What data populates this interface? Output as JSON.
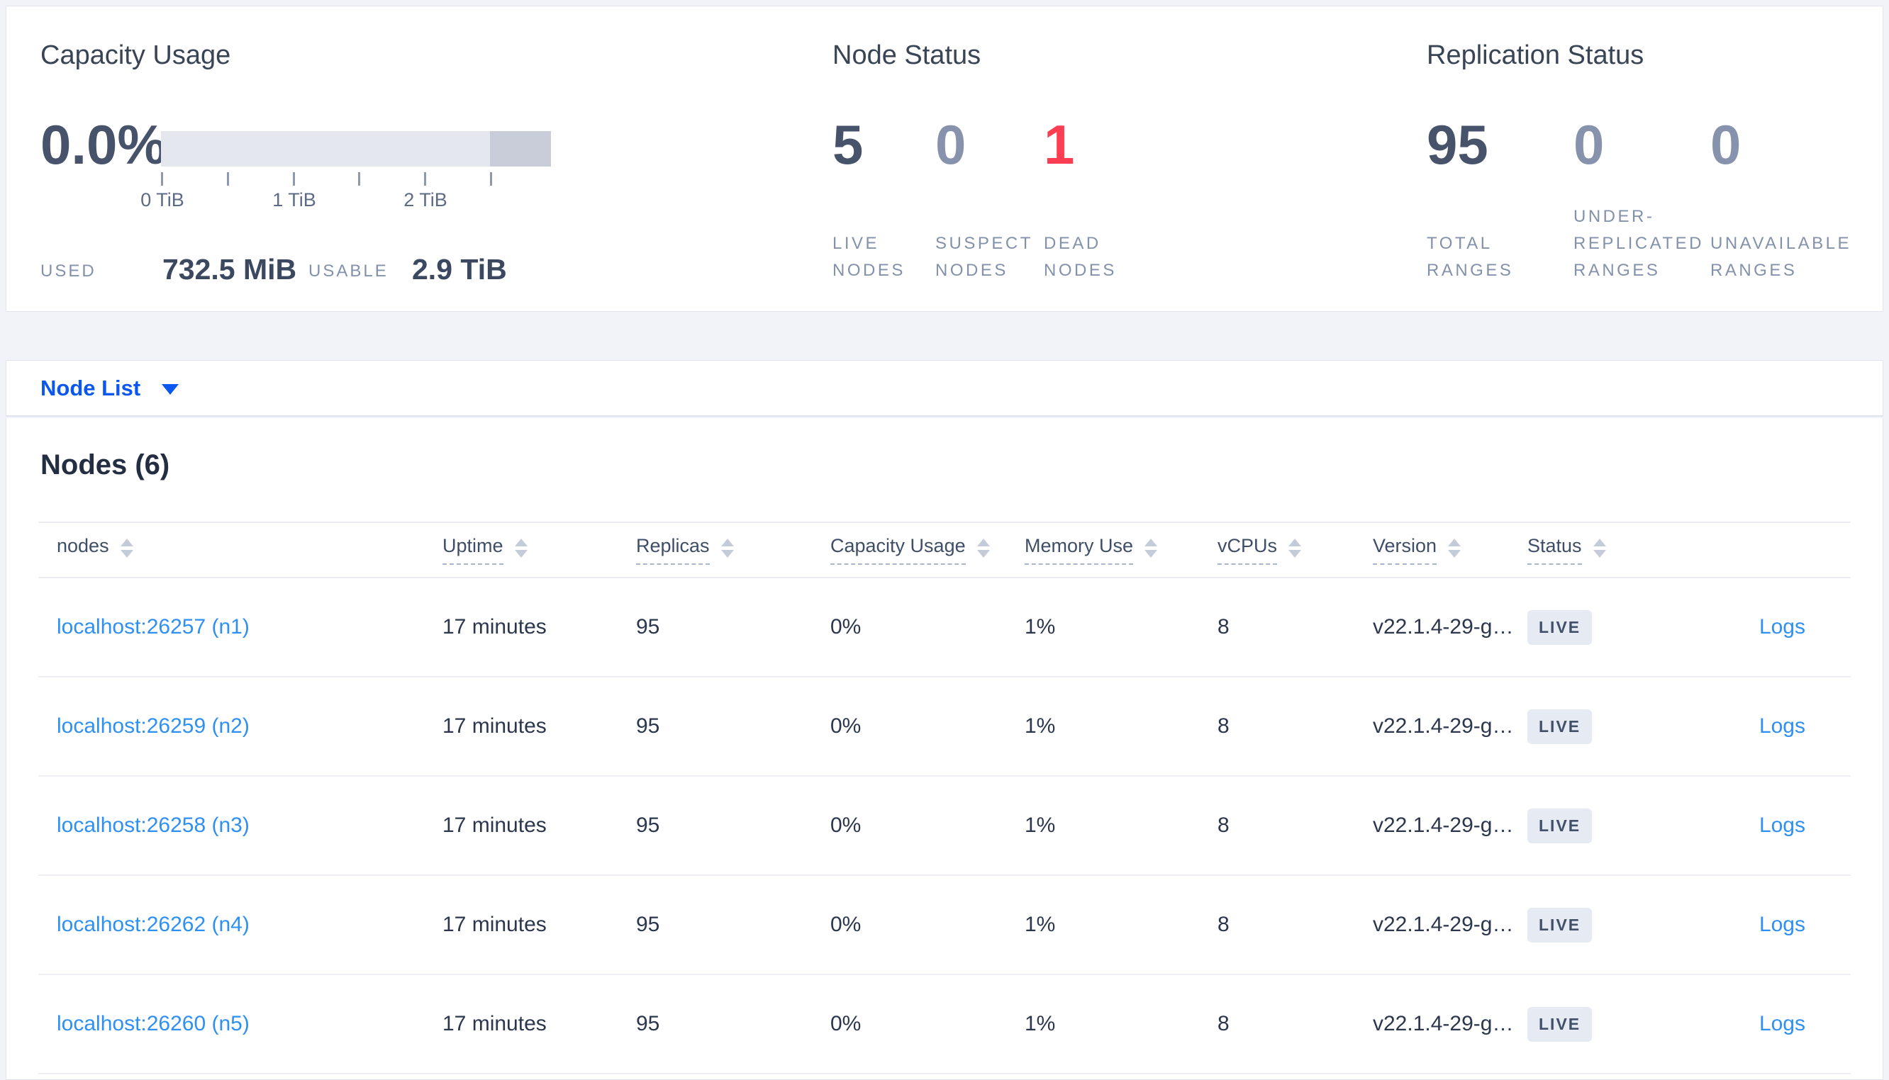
{
  "colors": {
    "page_background": "#f1f3f8",
    "card_background": "#ffffff",
    "primary_blue": "#0b57f0",
    "link_blue": "#2e90f2",
    "dark_slate": "#46536b",
    "muted_slate": "#8792ac",
    "danger_red": "#fc3d52",
    "bar_light": "#e5e7ef",
    "bar_dark": "#c9cdd9",
    "badge_background": "#e5eaf3"
  },
  "summary": {
    "capacity": {
      "title": "Capacity Usage",
      "percent": "0.0%",
      "ticks": [
        "0 TiB",
        "1 TiB",
        "2 TiB"
      ],
      "used_label": "USED",
      "used_value": "732.5 MiB",
      "usable_label": "USABLE",
      "usable_value": "2.9 TiB"
    },
    "node_status": {
      "title": "Node Status",
      "stats": [
        {
          "value": "5",
          "label": "LIVE NODES",
          "tone": "dark"
        },
        {
          "value": "0",
          "label": "SUSPECT NODES",
          "tone": "muted"
        },
        {
          "value": "1",
          "label": "DEAD NODES",
          "tone": "red"
        }
      ]
    },
    "replication_status": {
      "title": "Replication Status",
      "stats": [
        {
          "value": "95",
          "label": "TOTAL RANGES",
          "tone": "dark"
        },
        {
          "value": "0",
          "label": "UNDER-REPLICATED RANGES",
          "tone": "muted"
        },
        {
          "value": "0",
          "label": "UNAVAILABLE RANGES",
          "tone": "muted"
        }
      ]
    }
  },
  "view_selector": {
    "label": "Node List"
  },
  "nodes_section": {
    "heading": "Nodes (6)",
    "columns": [
      {
        "label": "nodes",
        "underline": ""
      },
      {
        "label": "Uptime",
        "underline": "tip"
      },
      {
        "label": "Replicas",
        "underline": "tip"
      },
      {
        "label": "Capacity Usage",
        "underline": "tip"
      },
      {
        "label": "Memory Use",
        "underline": "tip"
      },
      {
        "label": "vCPUs",
        "underline": "tip"
      },
      {
        "label": "Version",
        "underline": "tip"
      },
      {
        "label": "Status",
        "underline": "tip"
      }
    ],
    "rows": [
      {
        "node": "localhost:26257 (n1)",
        "uptime": "17 minutes",
        "replicas": "95",
        "capacity_usage": "0%",
        "memory_use": "1%",
        "vcpus": "8",
        "version": "v22.1.4-29-g…",
        "status": "LIVE",
        "logs": "Logs"
      },
      {
        "node": "localhost:26259 (n2)",
        "uptime": "17 minutes",
        "replicas": "95",
        "capacity_usage": "0%",
        "memory_use": "1%",
        "vcpus": "8",
        "version": "v22.1.4-29-g…",
        "status": "LIVE",
        "logs": "Logs"
      },
      {
        "node": "localhost:26258 (n3)",
        "uptime": "17 minutes",
        "replicas": "95",
        "capacity_usage": "0%",
        "memory_use": "1%",
        "vcpus": "8",
        "version": "v22.1.4-29-g…",
        "status": "LIVE",
        "logs": "Logs"
      },
      {
        "node": "localhost:26262 (n4)",
        "uptime": "17 minutes",
        "replicas": "95",
        "capacity_usage": "0%",
        "memory_use": "1%",
        "vcpus": "8",
        "version": "v22.1.4-29-g…",
        "status": "LIVE",
        "logs": "Logs"
      },
      {
        "node": "localhost:26260 (n5)",
        "uptime": "17 minutes",
        "replicas": "95",
        "capacity_usage": "0%",
        "memory_use": "1%",
        "vcpus": "8",
        "version": "v22.1.4-29-g…",
        "status": "LIVE",
        "logs": "Logs"
      }
    ]
  }
}
